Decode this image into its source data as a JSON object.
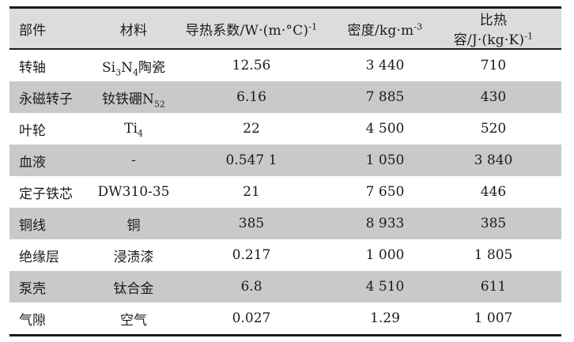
{
  "table": {
    "name": "material-thermal-properties",
    "headers": [
      "部件",
      "材料",
      "导热系数/W·(m·°C)^-1^",
      "密度/kg·m^-3^",
      "比热容/J·(kg·K)^-1^"
    ],
    "rows": [
      [
        "转轴",
        "Si~3~N~4~陶瓷",
        "12.56",
        "3 440",
        "710"
      ],
      [
        "永磁转子",
        "钕铁硼N~52~",
        "6.16",
        "7 885",
        "430"
      ],
      [
        "叶轮",
        "Ti~4~",
        "22",
        "4 500",
        "520"
      ],
      [
        "血液",
        "-",
        "0.547 1",
        "1 050",
        "3 840"
      ],
      [
        "定子铁芯",
        "DW310-35",
        "21",
        "7 650",
        "446"
      ],
      [
        "铜线",
        "铜",
        "385",
        "8 933",
        "385"
      ],
      [
        "绝缘层",
        "浸渍漆",
        "0.217",
        "1 000",
        "1 805"
      ],
      [
        "泵壳",
        "钛合金",
        "6.8",
        "4 510",
        "611"
      ],
      [
        "气隙",
        "空气",
        "0.027",
        "1.29",
        "1 007"
      ]
    ],
    "column_semantics": [
      "component",
      "material",
      "thermal-conductivity",
      "density",
      "specific-heat"
    ],
    "colors": {
      "header_bg": "#dcdcdc",
      "stripe_bg": "#c9c9c9",
      "rule": "#1c1c1c",
      "text": "#1b1b1b"
    }
  }
}
